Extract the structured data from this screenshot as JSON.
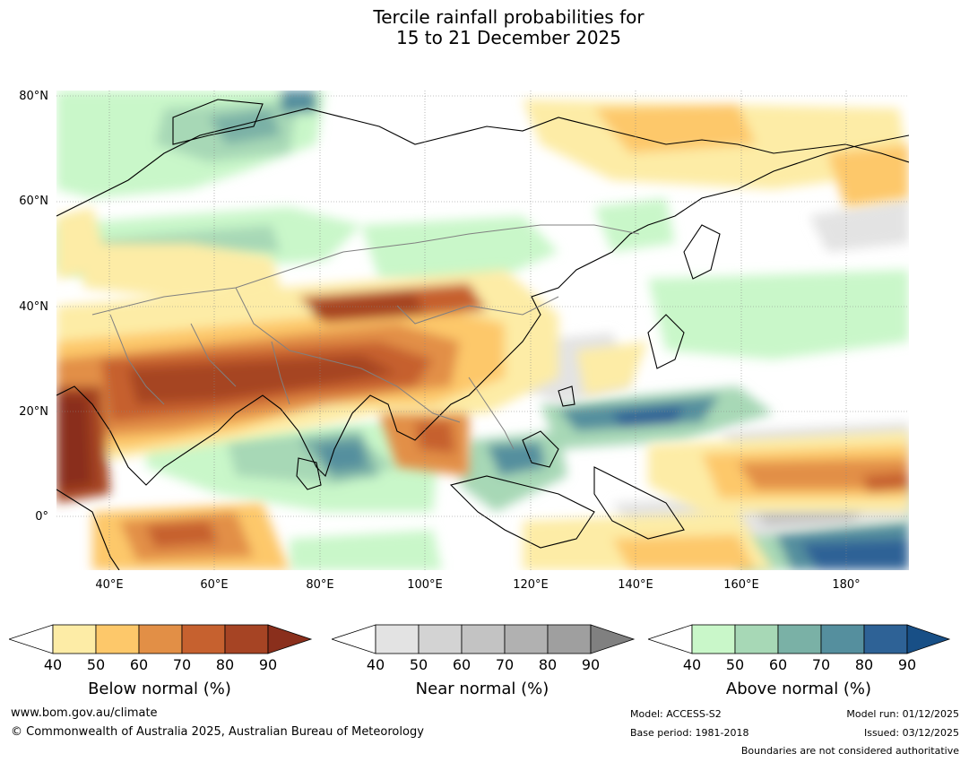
{
  "title": {
    "line1": "Tercile rainfall probabilities for",
    "line2": "15 to 21 December 2025"
  },
  "map": {
    "lat_labels": [
      "80°N",
      "60°N",
      "40°N",
      "20°N",
      "0°"
    ],
    "lon_labels": [
      "40°E",
      "60°E",
      "80°E",
      "100°E",
      "120°E",
      "140°E",
      "160°E",
      "180°"
    ],
    "lat_range": [
      -10,
      81
    ],
    "lon_range": [
      30,
      192
    ]
  },
  "colorbars": [
    {
      "title": "Below normal (%)",
      "ticks": [
        "40",
        "50",
        "60",
        "70",
        "80",
        "90"
      ],
      "colors": [
        "#fdeca6",
        "#fdc86a",
        "#e28f46",
        "#c6612f",
        "#a64424",
        "#8a2f1c"
      ]
    },
    {
      "title": "Near normal (%)",
      "ticks": [
        "40",
        "50",
        "60",
        "70",
        "80",
        "90"
      ],
      "colors": [
        "#e3e3e3",
        "#d3d3d3",
        "#c3c3c3",
        "#b1b1b1",
        "#9f9f9f",
        "#808080"
      ]
    },
    {
      "title": "Above normal (%)",
      "ticks": [
        "40",
        "50",
        "60",
        "70",
        "80",
        "90"
      ],
      "colors": [
        "#c9f7c9",
        "#a7d8b6",
        "#7ab1a6",
        "#558f9e",
        "#2e6296",
        "#184f86"
      ]
    }
  ],
  "footer": {
    "website": "www.bom.gov.au/climate",
    "copyright": "© Commonwealth of Australia 2025, Australian Bureau of Meteorology",
    "model": "Model: ACCESS-S2",
    "base_period": "Base period: 1981-2018",
    "model_run": "Model run: 01/12/2025",
    "issued": "Issued: 03/12/2025",
    "boundaries_note": "Boundaries are not considered authoritative"
  }
}
